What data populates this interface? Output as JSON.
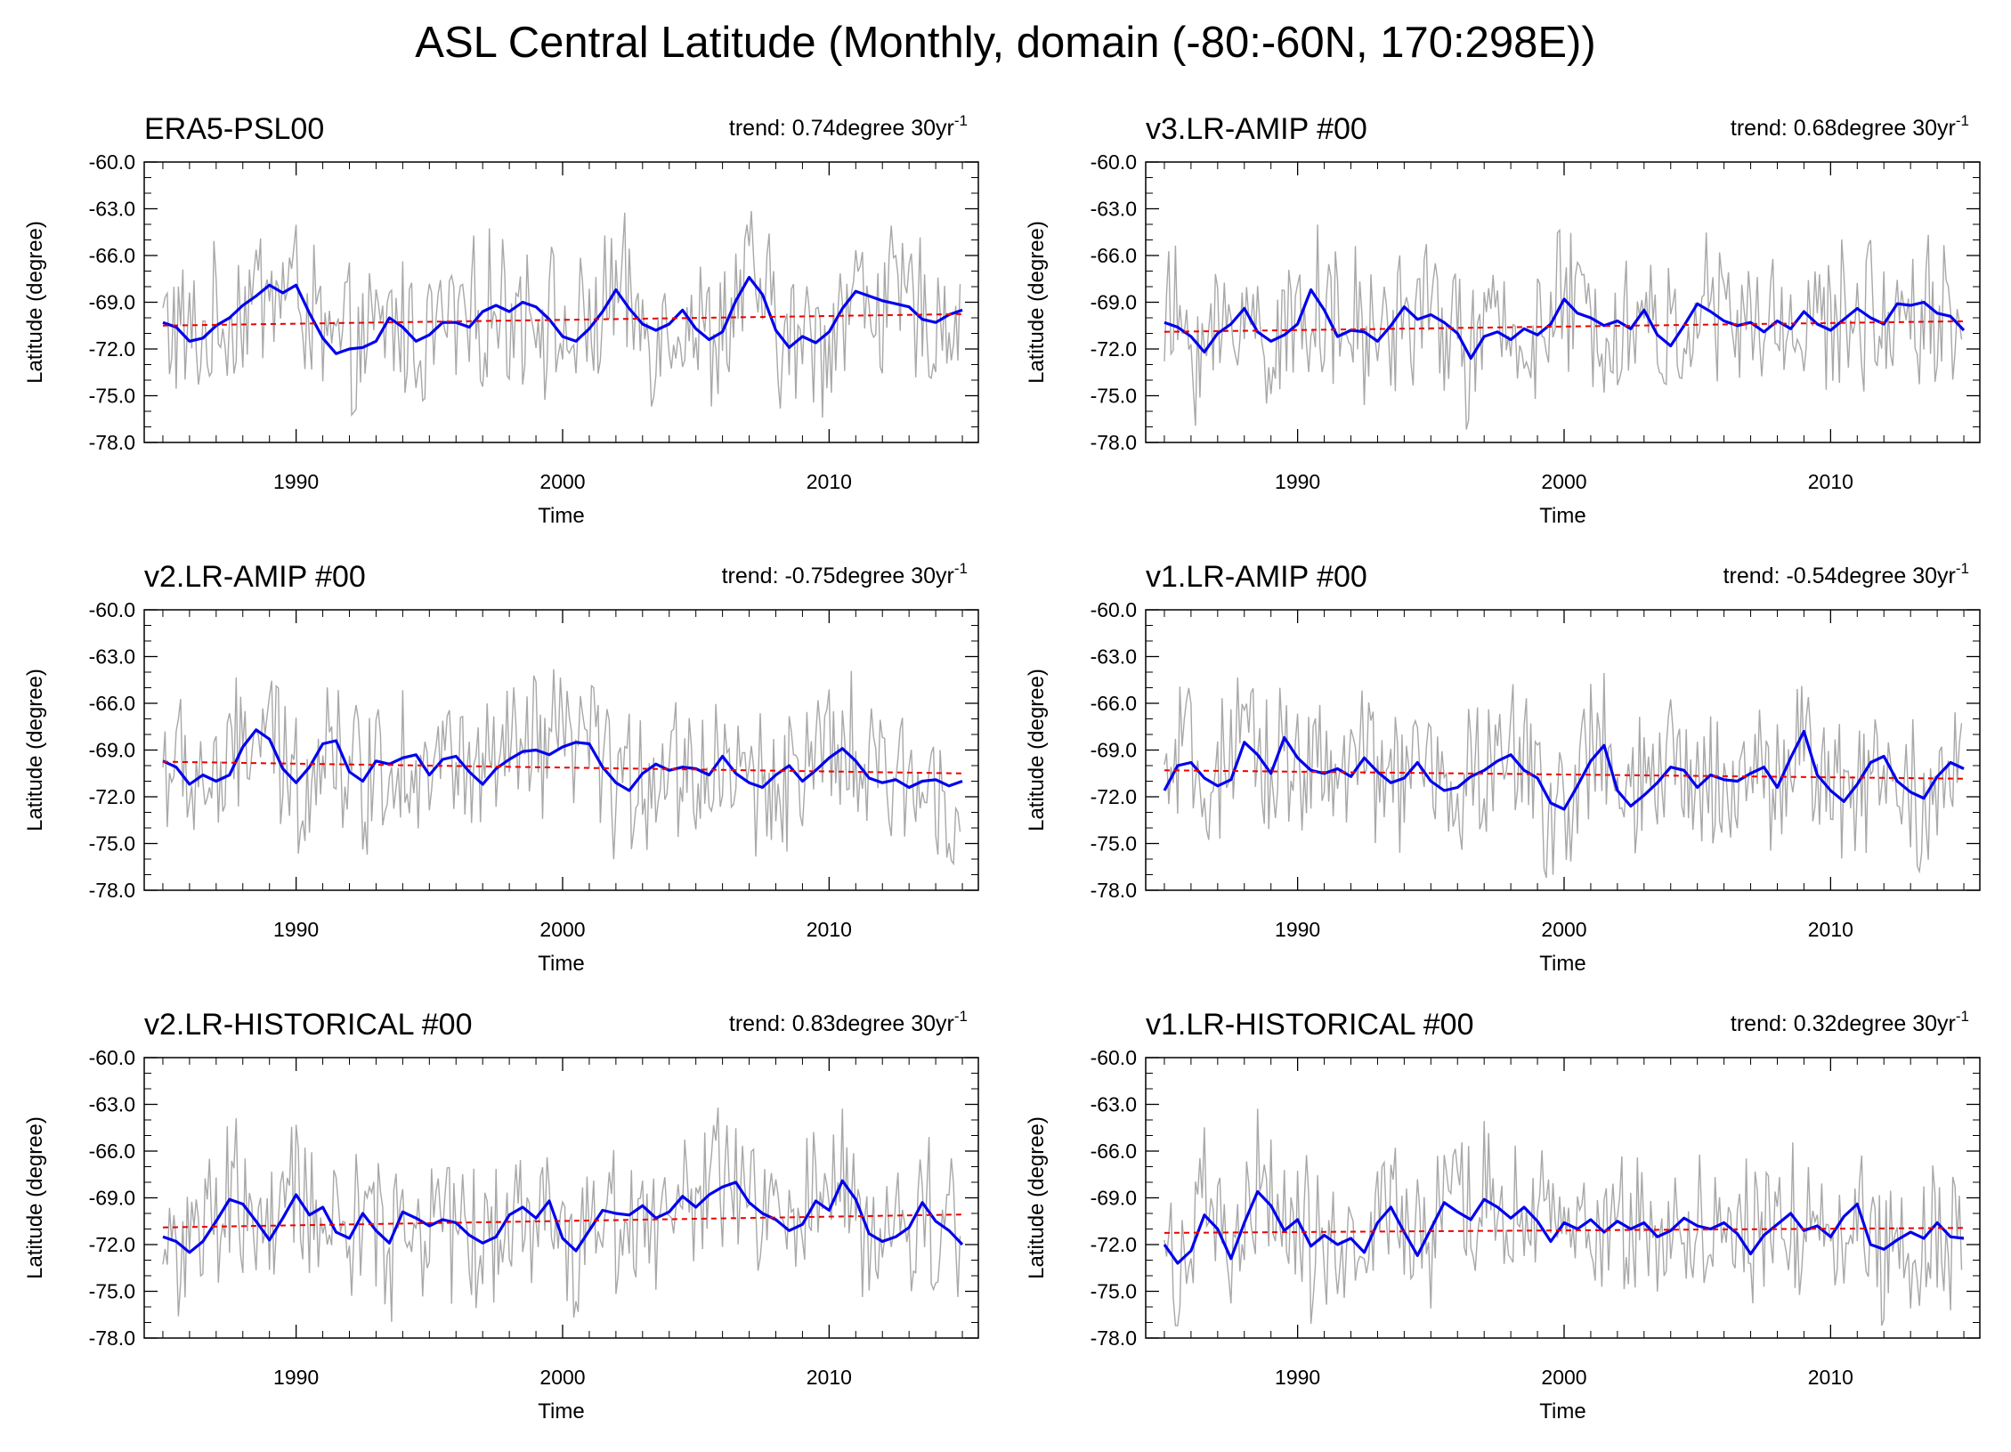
{
  "figure": {
    "title": "ASL Central Latitude (Monthly, domain (-80:-60N, 170:298E))"
  },
  "colors": {
    "raw": "#a8a8a8",
    "smooth": "#0000ee",
    "trend": "#ee0000",
    "axis": "#000000"
  },
  "chart_data": [
    {
      "type": "line",
      "title": "ERA5-PSL00",
      "trend_text": "trend: 0.74degree 30yr",
      "trend_sup": "-1",
      "xlabel": "Time",
      "ylabel": "Latitude (degree)",
      "xlim": [
        1984.3,
        2015.6
      ],
      "ylim": [
        -78,
        -60
      ],
      "xticks": [
        1990,
        2000,
        2010
      ],
      "yticks": [
        "-60.0",
        "-63.0",
        "-66.0",
        "-69.0",
        "-72.0",
        "-75.0",
        "-78.0"
      ],
      "trend_line": {
        "x": [
          1985,
          2015
        ],
        "y": [
          -70.5,
          -69.76
        ]
      },
      "smooth": {
        "x": [
          1985,
          1985.5,
          1986,
          1986.5,
          1987,
          1987.5,
          1988,
          1988.5,
          1989,
          1989.5,
          1990,
          1990.5,
          1991,
          1991.5,
          1992,
          1992.5,
          1993,
          1993.5,
          1994,
          1994.5,
          1995,
          1995.5,
          1996,
          1996.5,
          1997,
          1997.5,
          1998,
          1998.5,
          1999,
          1999.5,
          2000,
          2000.5,
          2001,
          2001.5,
          2002,
          2002.5,
          2003,
          2003.5,
          2004,
          2004.5,
          2005,
          2005.5,
          2006,
          2006.5,
          2007,
          2007.5,
          2008,
          2008.5,
          2009,
          2009.5,
          2010,
          2010.5,
          2011,
          2011.5,
          2012,
          2012.5,
          2013,
          2013.5,
          2014,
          2014.5,
          2015
        ],
        "y": [
          -70.3,
          -70.6,
          -71.5,
          -71.3,
          -70.5,
          -70.0,
          -69.2,
          -68.6,
          -67.9,
          -68.4,
          -67.9,
          -69.7,
          -71.3,
          -72.3,
          -72.0,
          -71.9,
          -71.5,
          -70.0,
          -70.6,
          -71.5,
          -71.1,
          -70.3,
          -70.3,
          -70.6,
          -69.6,
          -69.2,
          -69.6,
          -69.0,
          -69.3,
          -70.1,
          -71.2,
          -71.5,
          -70.7,
          -69.6,
          -68.2,
          -69.4,
          -70.4,
          -70.8,
          -70.4,
          -69.5,
          -70.7,
          -71.4,
          -70.9,
          -68.9,
          -67.4,
          -68.5,
          -70.8,
          -71.9,
          -71.2,
          -71.6,
          -70.9,
          -69.4,
          -68.3,
          -68.6,
          -68.9,
          -69.1,
          -69.3,
          -70.1,
          -70.3,
          -69.8,
          -69.5
        ]
      }
    },
    {
      "type": "line",
      "title": "v3.LR-AMIP  #00",
      "trend_text": "trend: 0.68degree 30yr",
      "trend_sup": "-1",
      "xlabel": "Time",
      "ylabel": "Latitude (degree)",
      "xlim": [
        1984.3,
        2015.6
      ],
      "ylim": [
        -78,
        -60
      ],
      "xticks": [
        1990,
        2000,
        2010
      ],
      "yticks": [
        "-60.0",
        "-63.0",
        "-66.0",
        "-69.0",
        "-72.0",
        "-75.0",
        "-78.0"
      ],
      "trend_line": {
        "x": [
          1985,
          2015
        ],
        "y": [
          -70.9,
          -70.22
        ]
      },
      "smooth": {
        "x": [
          1985,
          1985.5,
          1986,
          1986.5,
          1987,
          1987.5,
          1988,
          1988.5,
          1989,
          1989.5,
          1990,
          1990.5,
          1991,
          1991.5,
          1992,
          1992.5,
          1993,
          1993.5,
          1994,
          1994.5,
          1995,
          1995.5,
          1996,
          1996.5,
          1997,
          1997.5,
          1998,
          1998.5,
          1999,
          1999.5,
          2000,
          2000.5,
          2001,
          2001.5,
          2002,
          2002.5,
          2003,
          2003.5,
          2004,
          2004.5,
          2005,
          2005.5,
          2006,
          2006.5,
          2007,
          2007.5,
          2008,
          2008.5,
          2009,
          2009.5,
          2010,
          2010.5,
          2011,
          2011.5,
          2012,
          2012.5,
          2013,
          2013.5,
          2014,
          2014.5,
          2015
        ],
        "y": [
          -70.3,
          -70.6,
          -71.2,
          -72.2,
          -71.0,
          -70.4,
          -69.4,
          -70.9,
          -71.5,
          -71.1,
          -70.4,
          -68.2,
          -69.5,
          -71.2,
          -70.8,
          -70.9,
          -71.5,
          -70.5,
          -69.3,
          -70.1,
          -69.8,
          -70.3,
          -71.0,
          -72.6,
          -71.2,
          -70.9,
          -71.4,
          -70.7,
          -71.1,
          -70.4,
          -68.8,
          -69.7,
          -70.0,
          -70.5,
          -70.2,
          -70.7,
          -69.5,
          -71.1,
          -71.8,
          -70.5,
          -69.1,
          -69.6,
          -70.2,
          -70.5,
          -70.3,
          -70.9,
          -70.2,
          -70.7,
          -69.6,
          -70.4,
          -70.8,
          -70.1,
          -69.4,
          -70.0,
          -70.4,
          -69.1,
          -69.2,
          -69.0,
          -69.7,
          -69.9,
          -70.8
        ]
      }
    },
    {
      "type": "line",
      "title": "v2.LR-AMIP  #00",
      "trend_text": "trend: -0.75degree 30yr",
      "trend_sup": "-1",
      "xlabel": "Time",
      "ylabel": "Latitude (degree)",
      "xlim": [
        1984.3,
        2015.6
      ],
      "ylim": [
        -78,
        -60
      ],
      "xticks": [
        1990,
        2000,
        2010
      ],
      "yticks": [
        "-60.0",
        "-63.0",
        "-66.0",
        "-69.0",
        "-72.0",
        "-75.0",
        "-78.0"
      ],
      "trend_line": {
        "x": [
          1985,
          2015
        ],
        "y": [
          -69.75,
          -70.5
        ]
      },
      "smooth": {
        "x": [
          1985,
          1985.5,
          1986,
          1986.5,
          1987,
          1987.5,
          1988,
          1988.5,
          1989,
          1989.5,
          1990,
          1990.5,
          1991,
          1991.5,
          1992,
          1992.5,
          1993,
          1993.5,
          1994,
          1994.5,
          1995,
          1995.5,
          1996,
          1996.5,
          1997,
          1997.5,
          1998,
          1998.5,
          1999,
          1999.5,
          2000,
          2000.5,
          2001,
          2001.5,
          2002,
          2002.5,
          2003,
          2003.5,
          2004,
          2004.5,
          2005,
          2005.5,
          2006,
          2006.5,
          2007,
          2007.5,
          2008,
          2008.5,
          2009,
          2009.5,
          2010,
          2010.5,
          2011,
          2011.5,
          2012,
          2012.5,
          2013,
          2013.5,
          2014,
          2014.5,
          2015
        ],
        "y": [
          -69.7,
          -70.1,
          -71.2,
          -70.6,
          -71.0,
          -70.6,
          -68.8,
          -67.7,
          -68.3,
          -70.2,
          -71.1,
          -70.1,
          -68.6,
          -68.4,
          -70.4,
          -71.0,
          -69.7,
          -69.9,
          -69.5,
          -69.3,
          -70.6,
          -69.6,
          -69.4,
          -70.4,
          -71.2,
          -70.2,
          -69.6,
          -69.1,
          -69.0,
          -69.3,
          -68.8,
          -68.5,
          -68.6,
          -70.1,
          -71.1,
          -71.6,
          -70.5,
          -69.9,
          -70.3,
          -70.1,
          -70.2,
          -70.6,
          -69.4,
          -70.5,
          -71.1,
          -71.4,
          -70.6,
          -70.0,
          -71.0,
          -70.3,
          -69.5,
          -68.9,
          -69.7,
          -70.8,
          -71.1,
          -70.9,
          -71.4,
          -71.0,
          -70.9,
          -71.3,
          -71.0
        ]
      }
    },
    {
      "type": "line",
      "title": "v1.LR-AMIP  #00",
      "trend_text": "trend: -0.54degree 30yr",
      "trend_sup": "-1",
      "xlabel": "Time",
      "ylabel": "Latitude (degree)",
      "xlim": [
        1984.3,
        2015.6
      ],
      "ylim": [
        -78,
        -60
      ],
      "xticks": [
        1990,
        2000,
        2010
      ],
      "yticks": [
        "-60.0",
        "-63.0",
        "-66.0",
        "-69.0",
        "-72.0",
        "-75.0",
        "-78.0"
      ],
      "trend_line": {
        "x": [
          1985,
          2015
        ],
        "y": [
          -70.3,
          -70.84
        ]
      },
      "smooth": {
        "x": [
          1985,
          1985.5,
          1986,
          1986.5,
          1987,
          1987.5,
          1988,
          1988.5,
          1989,
          1989.5,
          1990,
          1990.5,
          1991,
          1991.5,
          1992,
          1992.5,
          1993,
          1993.5,
          1994,
          1994.5,
          1995,
          1995.5,
          1996,
          1996.5,
          1997,
          1997.5,
          1998,
          1998.5,
          1999,
          1999.5,
          2000,
          2000.5,
          2001,
          2001.5,
          2002,
          2002.5,
          2003,
          2003.5,
          2004,
          2004.5,
          2005,
          2005.5,
          2006,
          2006.5,
          2007,
          2007.5,
          2008,
          2008.5,
          2009,
          2009.5,
          2010,
          2010.5,
          2011,
          2011.5,
          2012,
          2012.5,
          2013,
          2013.5,
          2014,
          2014.5,
          2015
        ],
        "y": [
          -71.6,
          -70.0,
          -69.8,
          -70.8,
          -71.3,
          -70.9,
          -68.5,
          -69.3,
          -70.5,
          -68.2,
          -69.5,
          -70.3,
          -70.5,
          -70.2,
          -70.7,
          -69.5,
          -70.4,
          -71.1,
          -70.8,
          -69.8,
          -71.0,
          -71.6,
          -71.4,
          -70.7,
          -70.3,
          -69.7,
          -69.3,
          -70.3,
          -70.8,
          -72.4,
          -72.8,
          -71.3,
          -69.7,
          -68.7,
          -71.6,
          -72.6,
          -71.9,
          -71.1,
          -70.1,
          -70.3,
          -71.4,
          -70.6,
          -70.9,
          -71.0,
          -70.5,
          -70.1,
          -71.4,
          -69.5,
          -67.8,
          -70.6,
          -71.6,
          -72.3,
          -71.2,
          -69.8,
          -69.4,
          -71.0,
          -71.7,
          -72.1,
          -70.7,
          -69.8,
          -70.2
        ]
      }
    },
    {
      "type": "line",
      "title": "v2.LR-HISTORICAL  #00",
      "trend_text": "trend: 0.83degree 30yr",
      "trend_sup": "-1",
      "xlabel": "Time",
      "ylabel": "Latitude (degree)",
      "xlim": [
        1984.3,
        2015.6
      ],
      "ylim": [
        -78,
        -60
      ],
      "xticks": [
        1990,
        2000,
        2010
      ],
      "yticks": [
        "-60.0",
        "-63.0",
        "-66.0",
        "-69.0",
        "-72.0",
        "-75.0",
        "-78.0"
      ],
      "trend_line": {
        "x": [
          1985,
          2015
        ],
        "y": [
          -70.9,
          -70.07
        ]
      },
      "smooth": {
        "x": [
          1985,
          1985.5,
          1986,
          1986.5,
          1987,
          1987.5,
          1988,
          1988.5,
          1989,
          1989.5,
          1990,
          1990.5,
          1991,
          1991.5,
          1992,
          1992.5,
          1993,
          1993.5,
          1994,
          1994.5,
          1995,
          1995.5,
          1996,
          1996.5,
          1997,
          1997.5,
          1998,
          1998.5,
          1999,
          1999.5,
          2000,
          2000.5,
          2001,
          2001.5,
          2002,
          2002.5,
          2003,
          2003.5,
          2004,
          2004.5,
          2005,
          2005.5,
          2006,
          2006.5,
          2007,
          2007.5,
          2008,
          2008.5,
          2009,
          2009.5,
          2010,
          2010.5,
          2011,
          2011.5,
          2012,
          2012.5,
          2013,
          2013.5,
          2014,
          2014.5,
          2015
        ],
        "y": [
          -71.5,
          -71.8,
          -72.5,
          -71.8,
          -70.5,
          -69.1,
          -69.4,
          -70.5,
          -71.7,
          -70.3,
          -68.8,
          -70.1,
          -69.6,
          -71.2,
          -71.6,
          -70.0,
          -71.1,
          -71.9,
          -69.9,
          -70.3,
          -70.8,
          -70.4,
          -70.6,
          -71.4,
          -71.9,
          -71.5,
          -70.1,
          -69.6,
          -70.3,
          -69.2,
          -71.6,
          -72.4,
          -71.1,
          -69.8,
          -70.0,
          -70.1,
          -69.5,
          -70.3,
          -69.9,
          -68.9,
          -69.6,
          -68.8,
          -68.3,
          -68.0,
          -69.3,
          -70.0,
          -70.4,
          -71.1,
          -70.7,
          -69.2,
          -69.8,
          -67.9,
          -69.1,
          -71.3,
          -71.8,
          -71.5,
          -70.9,
          -69.3,
          -70.5,
          -71.1,
          -72.0
        ]
      }
    },
    {
      "type": "line",
      "title": "v1.LR-HISTORICAL  #00",
      "trend_text": "trend: 0.32degree 30yr",
      "trend_sup": "-1",
      "xlabel": "Time",
      "ylabel": "Latitude (degree)",
      "xlim": [
        1984.3,
        2015.6
      ],
      "ylim": [
        -78,
        -60
      ],
      "xticks": [
        1990,
        2000,
        2010
      ],
      "yticks": [
        "-60.0",
        "-63.0",
        "-66.0",
        "-69.0",
        "-72.0",
        "-75.0",
        "-78.0"
      ],
      "trend_line": {
        "x": [
          1985,
          2015
        ],
        "y": [
          -71.25,
          -70.93
        ]
      },
      "smooth": {
        "x": [
          1985,
          1985.5,
          1986,
          1986.5,
          1987,
          1987.5,
          1988,
          1988.5,
          1989,
          1989.5,
          1990,
          1990.5,
          1991,
          1991.5,
          1992,
          1992.5,
          1993,
          1993.5,
          1994,
          1994.5,
          1995,
          1995.5,
          1996,
          1996.5,
          1997,
          1997.5,
          1998,
          1998.5,
          1999,
          1999.5,
          2000,
          2000.5,
          2001,
          2001.5,
          2002,
          2002.5,
          2003,
          2003.5,
          2004,
          2004.5,
          2005,
          2005.5,
          2006,
          2006.5,
          2007,
          2007.5,
          2008,
          2008.5,
          2009,
          2009.5,
          2010,
          2010.5,
          2011,
          2011.5,
          2012,
          2012.5,
          2013,
          2013.5,
          2014,
          2014.5,
          2015
        ],
        "y": [
          -72.0,
          -73.2,
          -72.4,
          -70.1,
          -71.0,
          -72.9,
          -70.6,
          -68.6,
          -69.5,
          -71.1,
          -70.4,
          -72.1,
          -71.4,
          -72.0,
          -71.6,
          -72.5,
          -70.6,
          -69.6,
          -71.2,
          -72.7,
          -71.0,
          -69.3,
          -69.9,
          -70.4,
          -69.1,
          -69.6,
          -70.3,
          -69.6,
          -70.5,
          -71.8,
          -70.6,
          -71.0,
          -70.4,
          -71.2,
          -70.5,
          -71.0,
          -70.6,
          -71.5,
          -71.1,
          -70.3,
          -70.8,
          -71.0,
          -70.6,
          -71.3,
          -72.6,
          -71.4,
          -70.7,
          -70.0,
          -71.1,
          -70.8,
          -71.5,
          -70.2,
          -69.4,
          -72.0,
          -72.3,
          -71.7,
          -71.2,
          -71.6,
          -70.6,
          -71.5,
          -71.6
        ]
      }
    }
  ]
}
